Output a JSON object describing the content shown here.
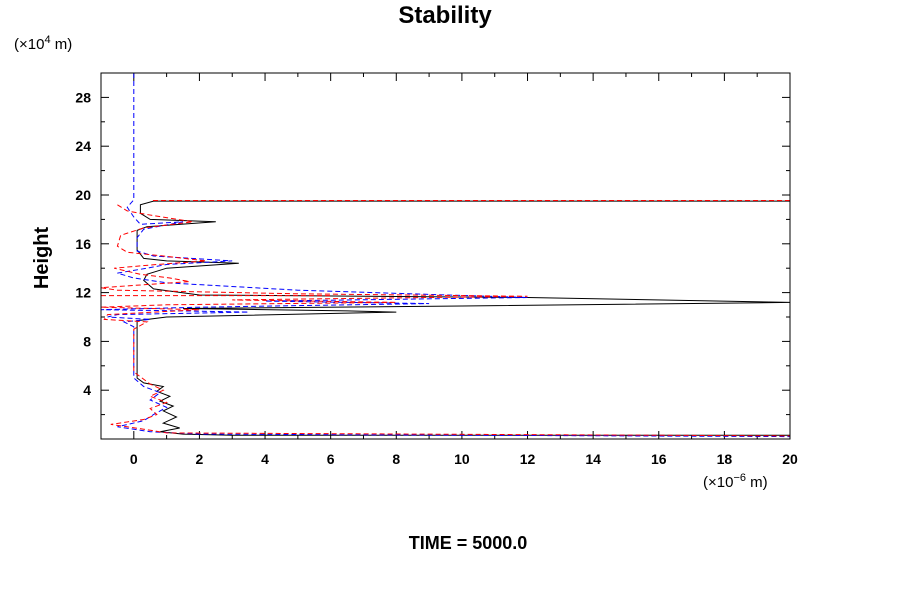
{
  "chart_data": {
    "type": "line",
    "title": "Stability",
    "ylabel": "Height",
    "xlabel": "",
    "y_units": {
      "prefix": "(×10",
      "exp": "4",
      "suffix": " m)"
    },
    "x_units": {
      "prefix": "(×10",
      "exp": "−6",
      "suffix": " m)"
    },
    "footer": "TIME = 5000.0",
    "xlim": [
      -1,
      20
    ],
    "ylim": [
      0,
      30
    ],
    "x_ticks": [
      0,
      2,
      4,
      6,
      8,
      10,
      12,
      14,
      16,
      18,
      20
    ],
    "x_tick_labels": [
      "0",
      "2",
      "4",
      "6",
      "8",
      "10",
      "12",
      "14",
      "16",
      "18",
      "20"
    ],
    "y_ticks": [
      4,
      8,
      12,
      16,
      20,
      24,
      28
    ],
    "y_tick_labels": [
      "4",
      "8",
      "12",
      "16",
      "20",
      "24",
      "28"
    ],
    "grid": false,
    "legend": "none",
    "series": [
      {
        "color": "#000000",
        "style": "solid",
        "points": [
          [
            20,
            0.3
          ],
          [
            3,
            0.3
          ],
          [
            1.5,
            0.4
          ],
          [
            0.8,
            0.6
          ],
          [
            1.4,
            0.9
          ],
          [
            0.9,
            1.3
          ],
          [
            1.3,
            1.8
          ],
          [
            0.9,
            2.3
          ],
          [
            1.2,
            2.7
          ],
          [
            0.8,
            3.1
          ],
          [
            1.1,
            3.5
          ],
          [
            0.7,
            3.9
          ],
          [
            0.9,
            4.3
          ],
          [
            0.3,
            4.6
          ],
          [
            0.1,
            5
          ],
          [
            0.1,
            9.7
          ],
          [
            1,
            10
          ],
          [
            8,
            10.4
          ],
          [
            6.5,
            10.5
          ],
          [
            1.5,
            10.7
          ],
          [
            10,
            10.9
          ],
          [
            20,
            11.2
          ],
          [
            12,
            11.6
          ],
          [
            2,
            11.8
          ],
          [
            0.6,
            12.3
          ],
          [
            0.3,
            13
          ],
          [
            0.4,
            13.5
          ],
          [
            1,
            14
          ],
          [
            3.2,
            14.4
          ],
          [
            1,
            14.6
          ],
          [
            0.3,
            14.8
          ],
          [
            0.1,
            15.5
          ],
          [
            0.1,
            17.1
          ],
          [
            0.4,
            17.4
          ],
          [
            2.5,
            17.8
          ],
          [
            0.5,
            18
          ],
          [
            0.2,
            18.5
          ],
          [
            0.2,
            19.2
          ],
          [
            0.6,
            19.5
          ],
          [
            20,
            19.5
          ]
        ]
      },
      {
        "color": "#0000ff",
        "style": "dashed",
        "points": [
          [
            0,
            30
          ],
          [
            0,
            19.6
          ],
          [
            -0.2,
            19
          ],
          [
            0,
            18.2
          ],
          [
            0.2,
            17.6
          ],
          [
            1.5,
            17.8
          ],
          [
            0.3,
            17.2
          ],
          [
            0.1,
            16.5
          ],
          [
            0.1,
            15.4
          ],
          [
            0.6,
            15
          ],
          [
            3,
            14.6
          ],
          [
            1,
            14.3
          ],
          [
            0.4,
            14
          ],
          [
            -0.5,
            13.6
          ],
          [
            0,
            13.2
          ],
          [
            1,
            12.8
          ],
          [
            5,
            12.2
          ],
          [
            12,
            11.6
          ],
          [
            4,
            11.3
          ],
          [
            9,
            11.1
          ],
          [
            2,
            10.8
          ],
          [
            -1,
            10.6
          ],
          [
            1.5,
            10.5
          ],
          [
            3.5,
            10.4
          ],
          [
            -0.5,
            10.2
          ],
          [
            -0.8,
            10
          ],
          [
            0.5,
            9.8
          ],
          [
            -0.3,
            9.6
          ],
          [
            0,
            9.2
          ],
          [
            0,
            5
          ],
          [
            0.3,
            4.3
          ],
          [
            0.8,
            3.8
          ],
          [
            0.5,
            3.2
          ],
          [
            1,
            2.6
          ],
          [
            0.6,
            2
          ],
          [
            0.3,
            1.5
          ],
          [
            -0.5,
            1
          ],
          [
            0.5,
            0.6
          ],
          [
            2,
            0.4
          ],
          [
            20,
            0.2
          ]
        ]
      },
      {
        "color": "#ff0000",
        "style": "dashed",
        "points": [
          [
            -0.5,
            19.2
          ],
          [
            -0.2,
            18.7
          ],
          [
            0.4,
            18.4
          ],
          [
            1.8,
            17.8
          ],
          [
            0.3,
            17.3
          ],
          [
            -0.4,
            16.7
          ],
          [
            -0.5,
            15.8
          ],
          [
            -0.2,
            15.3
          ],
          [
            0.9,
            15
          ],
          [
            2.2,
            14.6
          ],
          [
            0.7,
            14.3
          ],
          [
            -0.6,
            14
          ],
          [
            0.2,
            13.5
          ],
          [
            1.1,
            13.2
          ],
          [
            1.7,
            12.9
          ],
          [
            -1,
            12.4
          ],
          [
            -0.5,
            12.2
          ],
          [
            5,
            11.9
          ],
          [
            12,
            11.7
          ],
          [
            3,
            11.4
          ],
          [
            8,
            11.2
          ],
          [
            1,
            11
          ],
          [
            -1,
            10.8
          ],
          [
            2,
            10.6
          ],
          [
            -0.8,
            10.2
          ],
          [
            -0.9,
            9.8
          ],
          [
            0.4,
            9.6
          ],
          [
            0.2,
            9.3
          ],
          [
            0,
            9
          ],
          [
            0,
            5.5
          ],
          [
            0.5,
            4.5
          ],
          [
            0.9,
            4
          ],
          [
            0.5,
            3.5
          ],
          [
            1,
            3
          ],
          [
            0.5,
            2.5
          ],
          [
            0.7,
            2
          ],
          [
            0.3,
            1.6
          ],
          [
            -0.7,
            1.2
          ],
          [
            0.3,
            0.8
          ],
          [
            1,
            0.5
          ],
          [
            20,
            0.25
          ]
        ]
      },
      {
        "color": "#ff0000",
        "style": "dashed",
        "points": [
          [
            20,
            19.55
          ],
          [
            0.5,
            19.55
          ]
        ]
      },
      {
        "color": "#ff0000",
        "style": "dashed",
        "points": [
          [
            -1,
            11.75
          ],
          [
            6,
            11.75
          ]
        ]
      }
    ]
  }
}
